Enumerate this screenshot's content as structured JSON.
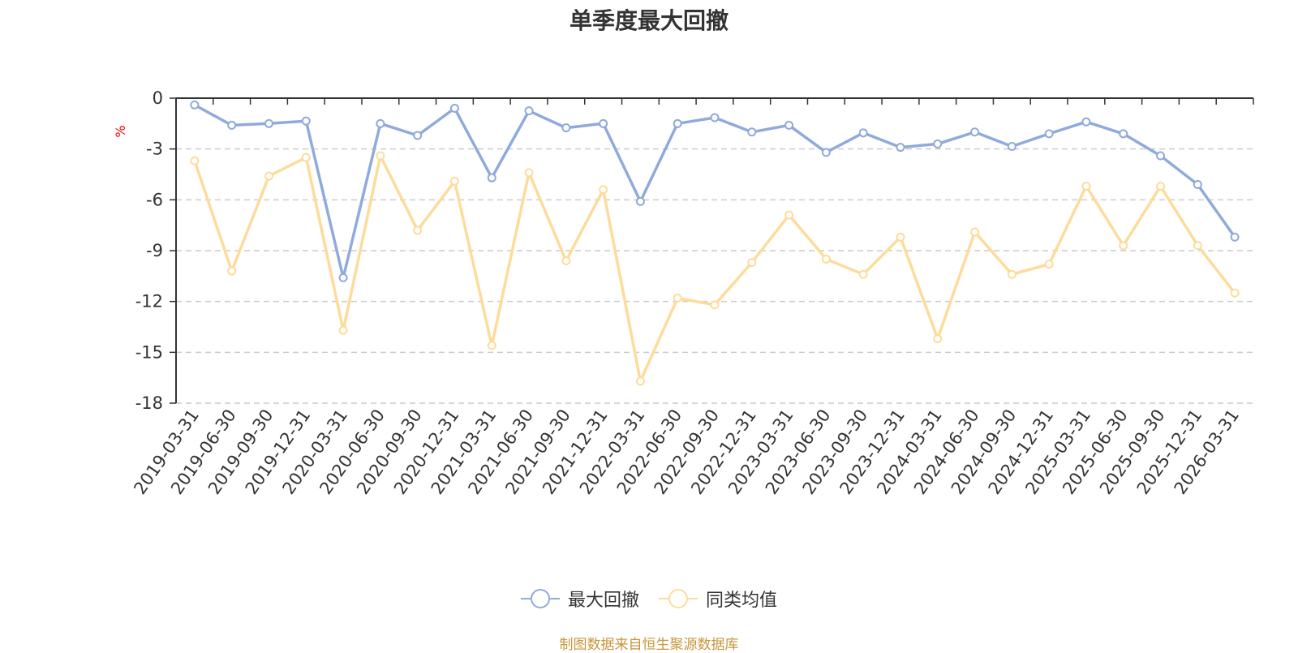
{
  "chart_data": {
    "type": "line",
    "title": "单季度最大回撤",
    "ylabel": "%",
    "xlabel": "",
    "ylim": [
      -18,
      0
    ],
    "yticks": [
      0,
      -3,
      -6,
      -9,
      -12,
      -15,
      -18
    ],
    "grid": true,
    "legend_position": "bottom-center",
    "categories": [
      "2019-03-31",
      "2019-06-30",
      "2019-09-30",
      "2019-12-31",
      "2020-03-31",
      "2020-06-30",
      "2020-09-30",
      "2020-12-31",
      "2021-03-31",
      "2021-06-30",
      "2021-09-30",
      "2021-12-31",
      "2022-03-31",
      "2022-06-30",
      "2022-09-30",
      "2022-12-31",
      "2023-03-31",
      "2023-06-30",
      "2023-09-30",
      "2023-12-31",
      "2024-03-31",
      "2024-06-30",
      "2024-09-30",
      "2024-12-31",
      "2025-03-31",
      "2025-06-30",
      "2025-09-30",
      "2025-12-31",
      "2026-03-31"
    ],
    "series": [
      {
        "name": "最大回撤",
        "color": "#8faadc",
        "values": [
          -0.4,
          -1.6,
          -1.5,
          -1.35,
          -10.6,
          -1.5,
          -2.2,
          -0.6,
          -4.7,
          -0.75,
          -1.75,
          -1.5,
          -6.1,
          -1.5,
          -1.15,
          -2.0,
          -1.6,
          -3.2,
          -2.05,
          -2.9,
          -2.7,
          -2.0,
          -2.85,
          -2.1,
          -1.4,
          -2.1,
          -3.4,
          -5.1,
          -8.2
        ]
      },
      {
        "name": "同类均值",
        "color": "#fddc9b",
        "values": [
          -3.7,
          -10.2,
          -4.6,
          -3.5,
          -13.7,
          -3.4,
          -7.8,
          -4.9,
          -14.6,
          -4.4,
          -9.6,
          -5.4,
          -16.7,
          -11.8,
          -12.2,
          -9.7,
          -6.9,
          -9.5,
          -10.4,
          -8.2,
          -14.2,
          -7.9,
          -10.4,
          -9.8,
          -5.2,
          -8.7,
          -5.2,
          -8.7,
          -11.5
        ]
      }
    ]
  },
  "footer": {
    "source": "制图数据来自恒生聚源数据库"
  }
}
